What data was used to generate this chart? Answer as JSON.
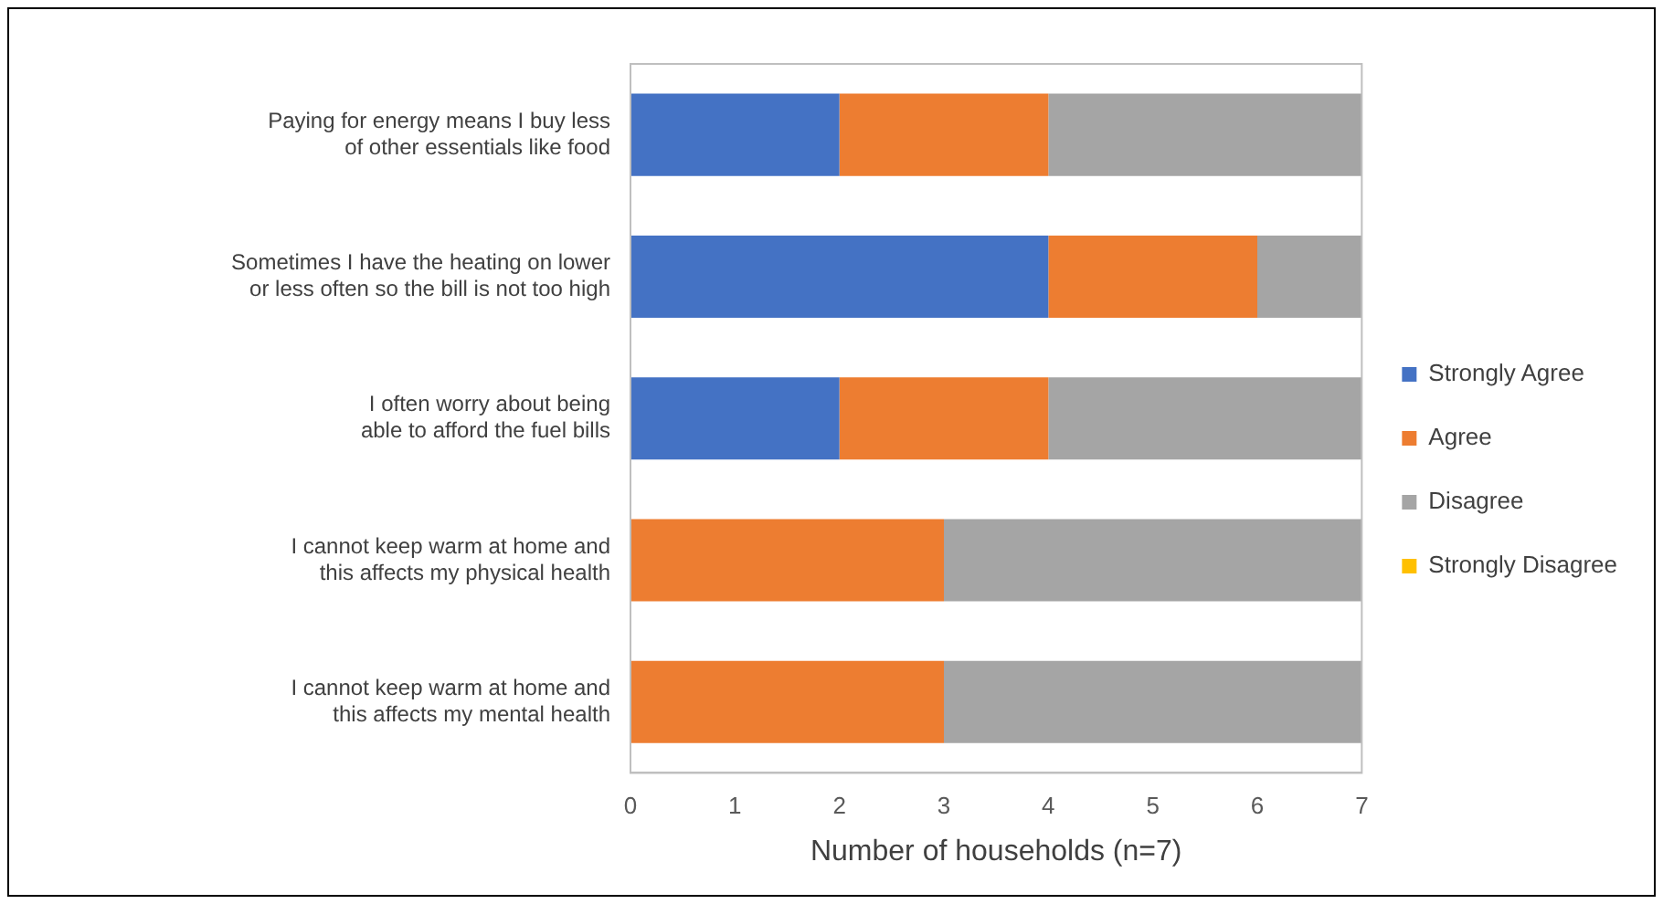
{
  "chart_data": {
    "type": "bar",
    "orientation": "horizontal",
    "stacked": true,
    "xlabel": "Number of households (n=7)",
    "categories": [
      "Paying for energy means I buy less\nof other essentials like food",
      "Sometimes I have the heating on lower\nor less often so the bill is not too high",
      "I often worry about being\nable to afford the fuel bills",
      "I cannot keep warm at home and\nthis affects my physical health",
      "I cannot keep warm at home and\nthis affects my mental health"
    ],
    "series": [
      {
        "name": "Strongly Agree",
        "color": "#4472c4",
        "values": [
          2,
          4,
          2,
          0,
          0
        ]
      },
      {
        "name": "Agree",
        "color": "#ed7d31",
        "values": [
          2,
          2,
          2,
          3,
          3
        ]
      },
      {
        "name": "Disagree",
        "color": "#a5a5a5",
        "values": [
          3,
          1,
          3,
          4,
          4
        ]
      },
      {
        "name": "Strongly Disagree",
        "color": "#ffc000",
        "values": [
          0,
          0,
          0,
          0,
          0
        ]
      }
    ],
    "xlim": [
      0,
      7
    ],
    "xticks": [
      0,
      1,
      2,
      3,
      4,
      5,
      6,
      7
    ],
    "grid": false,
    "legend": "right"
  }
}
